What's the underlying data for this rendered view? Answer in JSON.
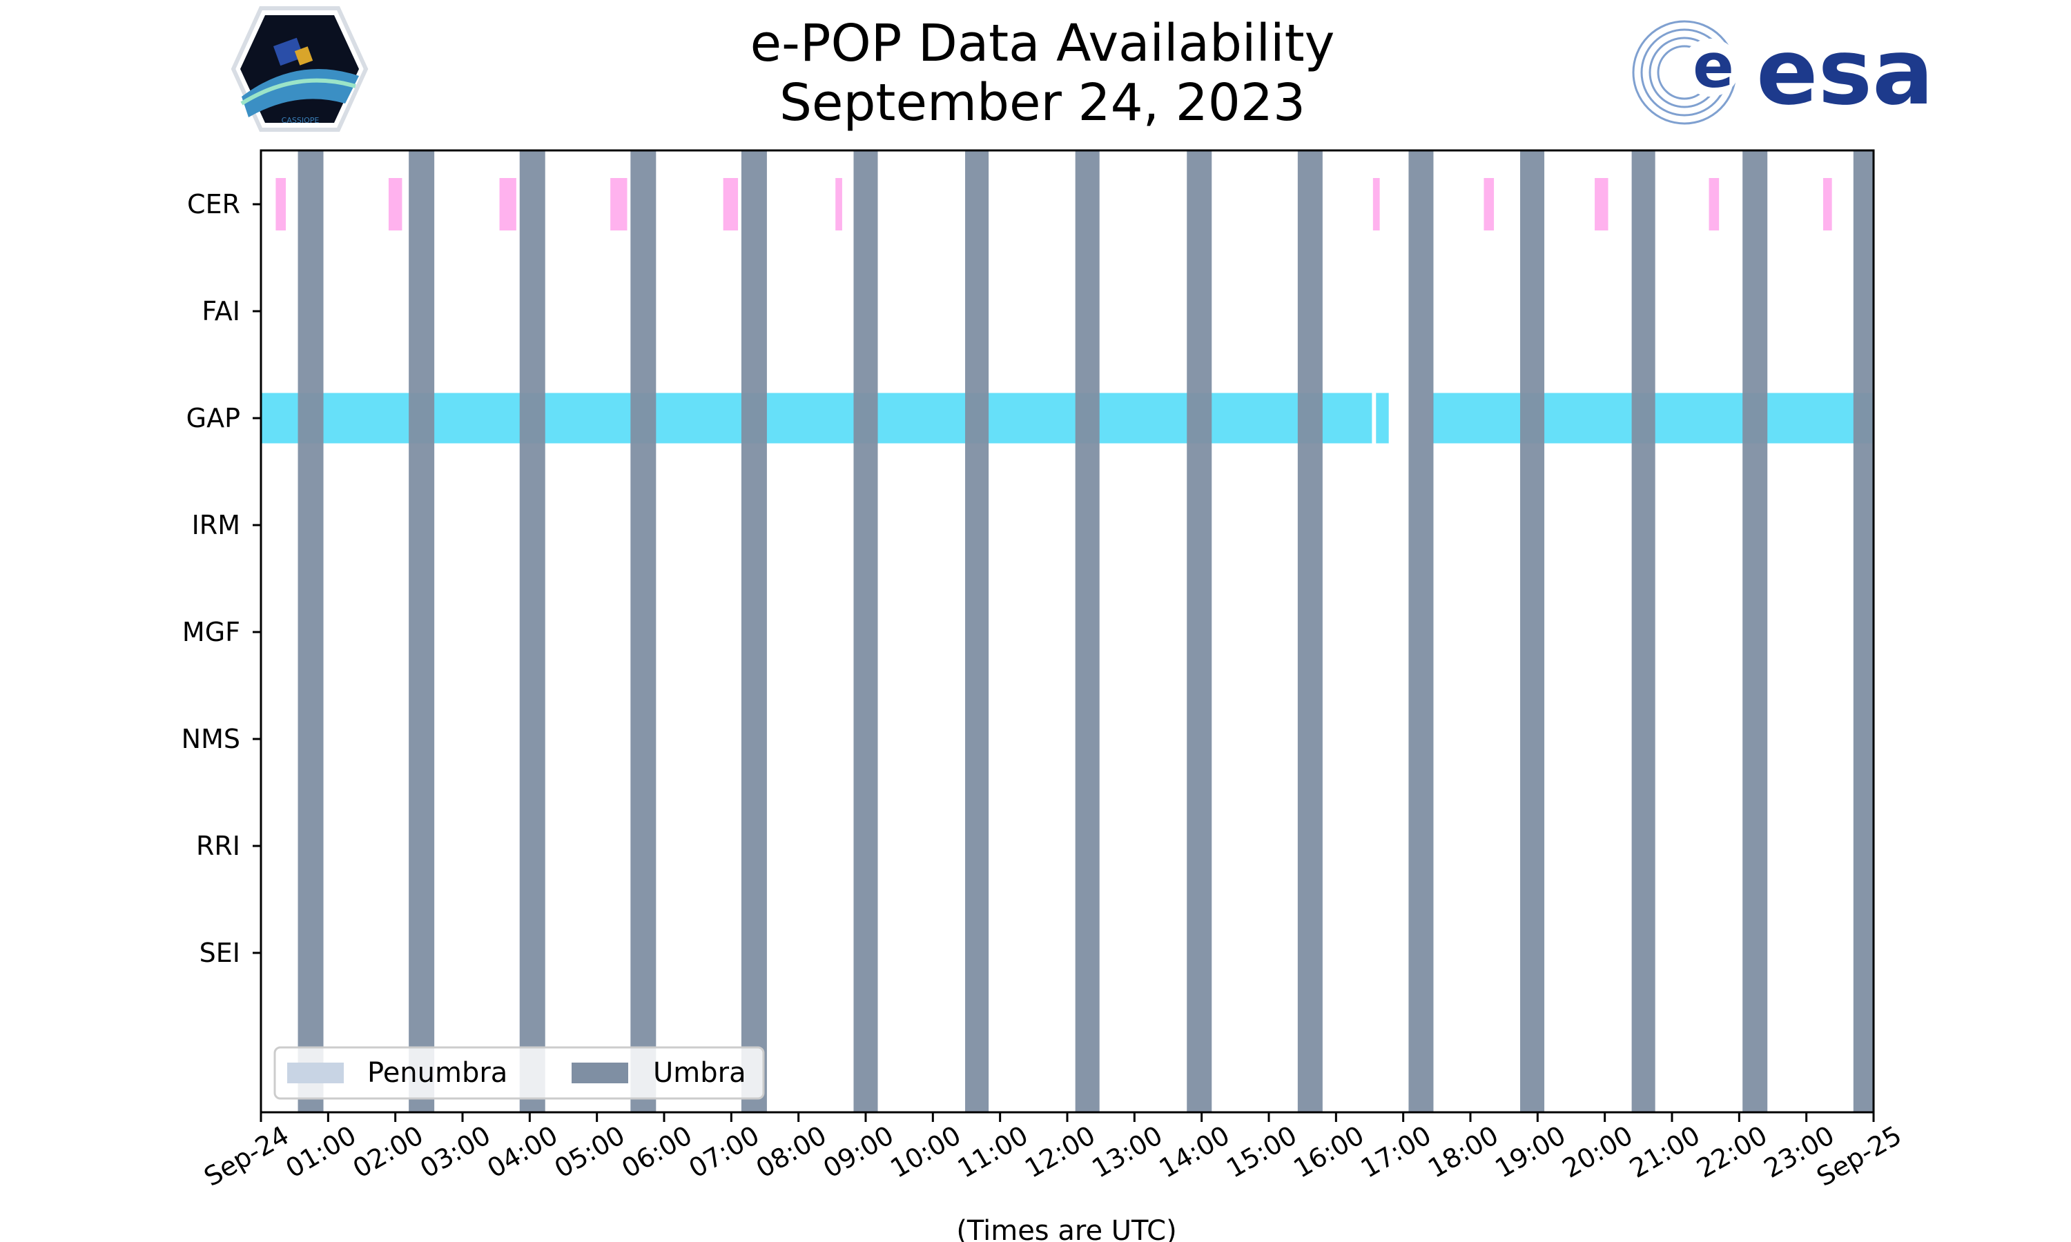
{
  "page": {
    "title_line1": "e-POP Data Availability",
    "title_line2": "September 24, 2023"
  },
  "logos": {
    "left": {
      "name": "CASSIOPE",
      "text": "CASSIOPE"
    },
    "right": {
      "name": "esa",
      "text": "esa"
    }
  },
  "chart_data": {
    "type": "timeline",
    "title": "e-POP Data Availability\nSeptember 24, 2023",
    "xlabel": "(Times are UTC)",
    "x_unit": "hours since 2023-09-24 00:00 UTC",
    "xlim": [
      0,
      24
    ],
    "x_ticks": [
      {
        "value": 0,
        "label": "Sep-24"
      },
      {
        "value": 1,
        "label": "01:00"
      },
      {
        "value": 2,
        "label": "02:00"
      },
      {
        "value": 3,
        "label": "03:00"
      },
      {
        "value": 4,
        "label": "04:00"
      },
      {
        "value": 5,
        "label": "05:00"
      },
      {
        "value": 6,
        "label": "06:00"
      },
      {
        "value": 7,
        "label": "07:00"
      },
      {
        "value": 8,
        "label": "08:00"
      },
      {
        "value": 9,
        "label": "09:00"
      },
      {
        "value": 10,
        "label": "10:00"
      },
      {
        "value": 11,
        "label": "11:00"
      },
      {
        "value": 12,
        "label": "12:00"
      },
      {
        "value": 13,
        "label": "13:00"
      },
      {
        "value": 14,
        "label": "14:00"
      },
      {
        "value": 15,
        "label": "15:00"
      },
      {
        "value": 16,
        "label": "16:00"
      },
      {
        "value": 17,
        "label": "17:00"
      },
      {
        "value": 18,
        "label": "18:00"
      },
      {
        "value": 19,
        "label": "19:00"
      },
      {
        "value": 20,
        "label": "20:00"
      },
      {
        "value": 21,
        "label": "21:00"
      },
      {
        "value": 22,
        "label": "22:00"
      },
      {
        "value": 23,
        "label": "23:00"
      },
      {
        "value": 24,
        "label": "Sep-25"
      }
    ],
    "instruments": [
      "CER",
      "FAI",
      "GAP",
      "IRM",
      "MGF",
      "NMS",
      "RRI",
      "SEI"
    ],
    "instrument_colors": {
      "CER": "#ff66dd",
      "GAP": "#00ccf5"
    },
    "data_segments": {
      "CER": [
        [
          0.22,
          0.37
        ],
        [
          1.9,
          2.1
        ],
        [
          3.55,
          3.8
        ],
        [
          5.2,
          5.45
        ],
        [
          6.88,
          7.1
        ],
        [
          8.55,
          8.65
        ],
        [
          16.55,
          16.65
        ],
        [
          18.2,
          18.35
        ],
        [
          19.85,
          20.05
        ],
        [
          21.55,
          21.7
        ],
        [
          23.25,
          23.38
        ]
      ],
      "FAI": [],
      "IRM": [],
      "MGF": [],
      "NMS": [],
      "RRI": [],
      "SEI": [],
      "GAP": [
        [
          0,
          16.55
        ],
        [
          16.58,
          16.8
        ],
        [
          17.42,
          24
        ]
      ]
    },
    "eclipse": {
      "umbra_color": "#7f8fa3",
      "penumbra_color": "#c8d4e4",
      "umbra": [
        [
          0.55,
          0.93
        ],
        [
          2.2,
          2.58
        ],
        [
          3.85,
          4.23
        ],
        [
          5.5,
          5.88
        ],
        [
          7.15,
          7.53
        ],
        [
          8.82,
          9.18
        ],
        [
          10.48,
          10.83
        ],
        [
          12.12,
          12.48
        ],
        [
          13.78,
          14.15
        ],
        [
          15.43,
          15.8
        ],
        [
          17.08,
          17.45
        ],
        [
          18.74,
          19.1
        ],
        [
          20.4,
          20.75
        ],
        [
          22.05,
          22.42
        ],
        [
          23.7,
          24.0
        ]
      ],
      "penumbra": []
    },
    "legend": {
      "position": "lower-left",
      "entries": [
        "Penumbra",
        "Umbra"
      ]
    }
  }
}
